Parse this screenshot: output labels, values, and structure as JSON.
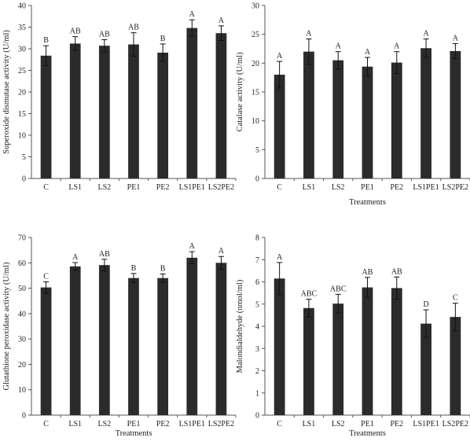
{
  "colors": {
    "bar": "#2b2b2b",
    "axis": "#555555",
    "text": "#222222"
  },
  "chart_data": [
    {
      "type": "bar",
      "categories": [
        "C",
        "LS1",
        "LS2",
        "PE1",
        "PE2",
        "LS1PE1",
        "LS2PE2"
      ],
      "values": [
        28.4,
        31.2,
        30.7,
        31.0,
        29.1,
        34.8,
        33.6
      ],
      "errors": [
        2.3,
        1.6,
        1.4,
        2.7,
        2.0,
        1.9,
        1.7
      ],
      "significance": [
        "B",
        "AB",
        "AB",
        "AB",
        "B",
        "A",
        "A"
      ],
      "xlabel": "",
      "ylabel": "Superoxide dismutase activity (U/ml)",
      "ylim": [
        0,
        40
      ],
      "yticks": [
        0,
        5,
        10,
        15,
        20,
        25,
        30,
        35,
        40
      ],
      "grid": false,
      "legend": "none"
    },
    {
      "type": "bar",
      "categories": [
        "C",
        "LS1",
        "LS2",
        "PE1",
        "PE2",
        "LS1PE1",
        "LS2PE2"
      ],
      "values": [
        18.0,
        22.0,
        20.5,
        19.4,
        20.1,
        22.6,
        22.1
      ],
      "errors": [
        2.3,
        2.2,
        1.5,
        1.6,
        1.9,
        1.6,
        1.3
      ],
      "significance": [
        "A",
        "A",
        "A",
        "A",
        "A",
        "A",
        "A"
      ],
      "xlabel": "Treatments",
      "ylabel": "Catalase activity (U/ml)",
      "ylim": [
        0,
        30
      ],
      "yticks": [
        0,
        5,
        10,
        15,
        20,
        25,
        30
      ],
      "grid": false,
      "legend": "none"
    },
    {
      "type": "bar",
      "categories": [
        "C",
        "LS1",
        "LS2",
        "PE1",
        "PE2",
        "LS1PE1",
        "LS2PE2"
      ],
      "values": [
        50.3,
        58.6,
        59.1,
        54.0,
        54.0,
        62.0,
        60.0
      ],
      "errors": [
        2.2,
        1.5,
        2.3,
        1.8,
        1.6,
        2.4,
        2.5
      ],
      "significance": [
        "C",
        "A",
        "AB",
        "B",
        "B",
        "A",
        "A"
      ],
      "xlabel": "Treatments",
      "ylabel": "Glutathione peroxidase activity (U/ml)",
      "ylim": [
        0,
        70
      ],
      "yticks": [
        0,
        10,
        20,
        30,
        40,
        50,
        60,
        70
      ],
      "grid": false,
      "legend": "none"
    },
    {
      "type": "bar",
      "categories": [
        "C",
        "LS1",
        "LS2",
        "PE1",
        "PE2",
        "LS1PE1",
        "LS2PE2"
      ],
      "values": [
        6.15,
        4.82,
        5.02,
        5.75,
        5.72,
        4.12,
        4.42
      ],
      "errors": [
        0.72,
        0.4,
        0.42,
        0.45,
        0.5,
        0.62,
        0.62
      ],
      "significance": [
        "A",
        "ABC",
        "ABC",
        "AB",
        "AB",
        "D",
        "C"
      ],
      "xlabel": "Treatments",
      "ylabel": "Malondialdehyde (nmol/ml)",
      "ylim": [
        0,
        8
      ],
      "yticks": [
        0,
        1,
        2,
        3,
        4,
        5,
        6,
        7,
        8
      ],
      "grid": false,
      "legend": "none"
    }
  ]
}
